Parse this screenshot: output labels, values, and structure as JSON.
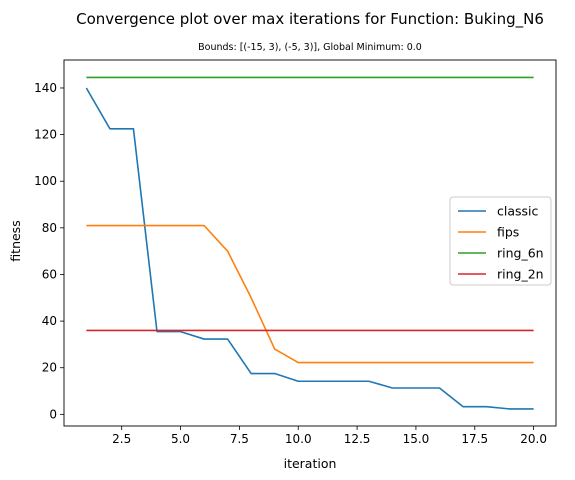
{
  "chart_data": {
    "type": "line",
    "title": "Convergence plot over max iterations for Function: Buking_N6",
    "subtitle": "Bounds: [(-15, 3), (-5, 3)], Global Minimum: 0.0",
    "xlabel": "iteration",
    "ylabel": "fitness",
    "xlim": [
      0.05,
      20.95
    ],
    "ylim": [
      -5,
      152
    ],
    "xticks": [
      2.5,
      5.0,
      7.5,
      10.0,
      12.5,
      15.0,
      17.5,
      20.0
    ],
    "xtick_labels": [
      "2.5",
      "5.0",
      "7.5",
      "10.0",
      "12.5",
      "15.0",
      "17.5",
      "20.0"
    ],
    "yticks": [
      0,
      20,
      40,
      60,
      80,
      100,
      120,
      140
    ],
    "ytick_labels": [
      "0",
      "20",
      "40",
      "60",
      "80",
      "100",
      "120",
      "140"
    ],
    "grid": false,
    "legend_position": "center-right",
    "x": [
      1,
      2,
      3,
      4,
      5,
      6,
      7,
      8,
      9,
      10,
      11,
      12,
      13,
      14,
      15,
      16,
      17,
      18,
      19,
      20
    ],
    "series": [
      {
        "name": "classic",
        "color": "#1f77b4",
        "values": [
          140,
          122.5,
          122.5,
          35.5,
          35.5,
          32.3,
          32.3,
          17.5,
          17.5,
          14.2,
          14.2,
          14.2,
          14.2,
          11.3,
          11.3,
          11.3,
          3.3,
          3.3,
          2.3,
          2.3
        ]
      },
      {
        "name": "fips",
        "color": "#ff7f0e",
        "values": [
          81,
          81,
          81,
          81,
          81,
          81,
          70,
          50,
          28,
          22.2,
          22.2,
          22.2,
          22.2,
          22.2,
          22.2,
          22.2,
          22.2,
          22.2,
          22.2,
          22.2
        ]
      },
      {
        "name": "ring_6n",
        "color": "#2ca02c",
        "values": [
          144.5,
          144.5,
          144.5,
          144.5,
          144.5,
          144.5,
          144.5,
          144.5,
          144.5,
          144.5,
          144.5,
          144.5,
          144.5,
          144.5,
          144.5,
          144.5,
          144.5,
          144.5,
          144.5,
          144.5
        ]
      },
      {
        "name": "ring_2n",
        "color": "#d62728",
        "values": [
          36,
          36,
          36,
          36,
          36,
          36,
          36,
          36,
          36,
          36,
          36,
          36,
          36,
          36,
          36,
          36,
          36,
          36,
          36,
          36
        ]
      }
    ]
  }
}
